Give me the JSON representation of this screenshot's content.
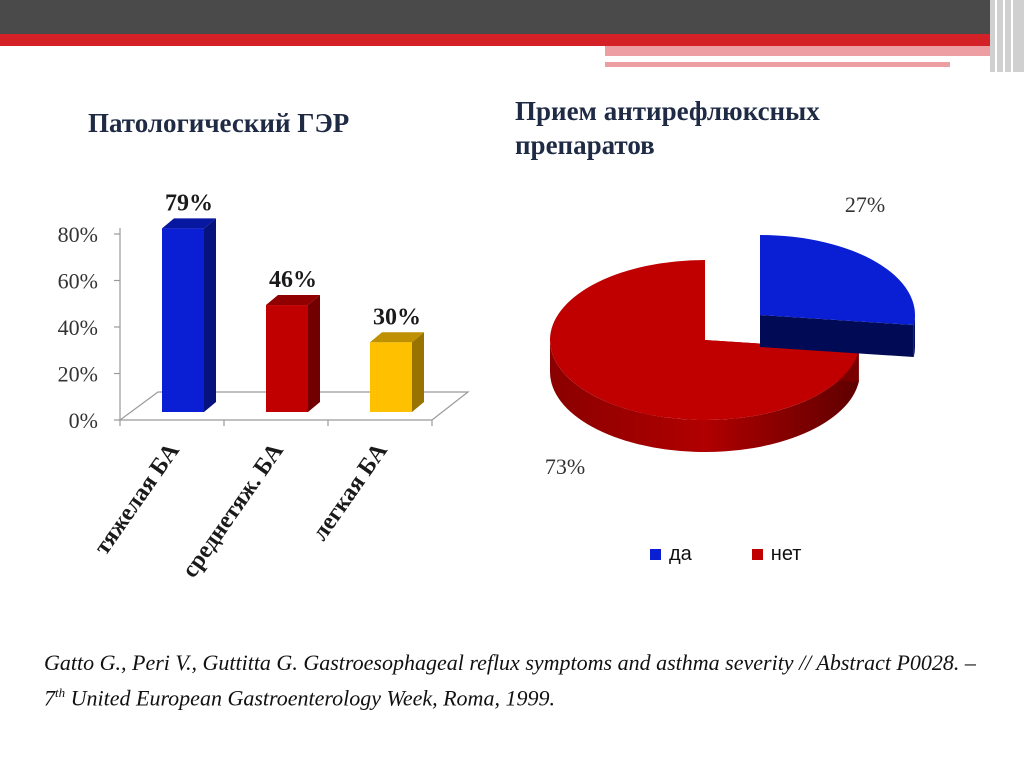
{
  "colors": {
    "header_dark": "#4a4a4a",
    "header_red": "#d42027",
    "header_pink": "#ec9ea2",
    "title": "#1f2a44",
    "blue": "#0a1fd4",
    "red": "#c00000",
    "yellow": "#ffc000"
  },
  "bar_title": "Патологический ГЭР",
  "pie_title": "Прием антирефлюксных препаратов",
  "chart_data": [
    {
      "type": "bar",
      "title": "Патологический ГЭР",
      "categories": [
        "тяжелая БА",
        "среднетяж. БА",
        "легкая БА"
      ],
      "values": [
        79,
        46,
        30
      ],
      "data_labels": [
        "79%",
        "46%",
        "30%"
      ],
      "bar_colors": [
        "#0a1fd4",
        "#c00000",
        "#ffc000"
      ],
      "ylim": [
        0,
        80
      ],
      "yticks": [
        "0%",
        "20%",
        "40%",
        "60%",
        "80%"
      ],
      "ytick_values": [
        0,
        20,
        40,
        60,
        80
      ],
      "grid": false,
      "legend": "none"
    },
    {
      "type": "pie",
      "title": "Прием антирефлюксных препаратов",
      "categories": [
        "да",
        "нет"
      ],
      "values": [
        27,
        73
      ],
      "data_labels": [
        "27%",
        "73%"
      ],
      "colors": [
        "#0a1fd4",
        "#c00000"
      ],
      "legend": "bottom"
    }
  ],
  "legend": {
    "items": [
      {
        "label": "да",
        "color": "#0a1fd4"
      },
      {
        "label": "нет",
        "color": "#c00000"
      }
    ]
  },
  "citation": {
    "part1": "Gatto G., Peri V., Guttitta G. Gastroesophageal reflux symptoms and asthma severity // Abstract P0028. – 7",
    "sup": "th",
    "part2": " United European Gastroenterology Week, Roma, 1999."
  }
}
